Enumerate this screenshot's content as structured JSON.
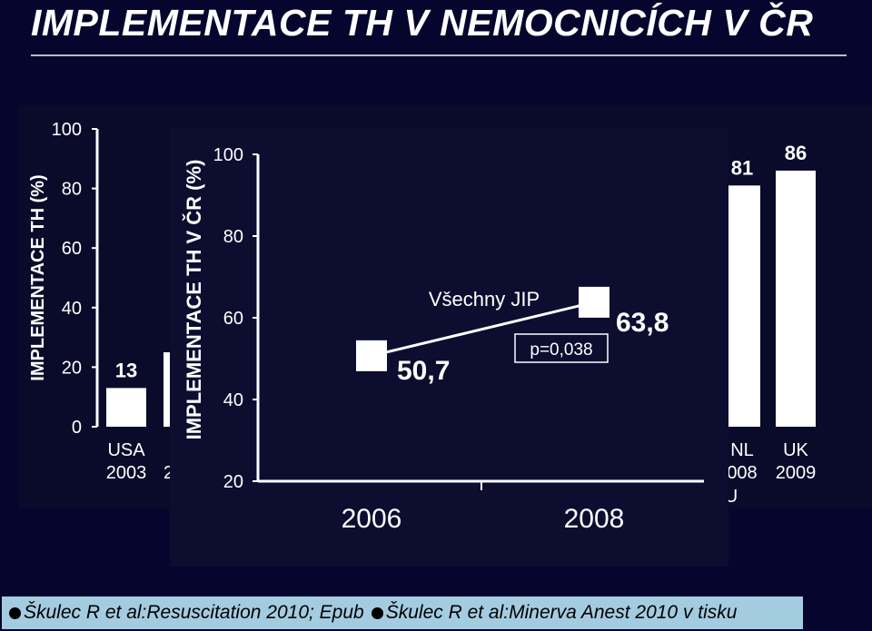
{
  "slide": {
    "title": "IMPLEMENTACE TH V NEMOCNICÍCH V ČR",
    "citations": [
      "Škulec R et al:Resuscitation 2010; Epub",
      "Škulec R et al:Minerva Anest 2010 v tisku"
    ]
  },
  "colors": {
    "background": "#05052e",
    "panel": "#0a0a2a",
    "front_panel": "#0d0d30",
    "bar": "#ffffff",
    "citation_bar": "#a4cce0"
  },
  "chart_data": [
    {
      "type": "bar",
      "ylabel": "IMPLEMENTACE TH (%)",
      "ylim": [
        0,
        100
      ],
      "yticks": [
        "0",
        "20",
        "40",
        "60",
        "80",
        "100"
      ],
      "bars": [
        {
          "label_top": "USA",
          "label_bottom": "2003",
          "value": 13,
          "value_label": "13"
        },
        {
          "label_top": "",
          "label_bottom": "2",
          "value": 25,
          "value_label": ""
        },
        {
          "label_top": "NL",
          "label_bottom": "008",
          "label_extra": "U",
          "value": 81,
          "value_label": "81"
        },
        {
          "label_top": "UK",
          "label_bottom": "2009",
          "value": 86,
          "value_label": "86"
        }
      ]
    },
    {
      "type": "line",
      "ylabel": "IMPLEMENTACE TH V ČR (%)",
      "ylim": [
        20,
        100
      ],
      "yticks": [
        "20",
        "40",
        "60",
        "80",
        "100"
      ],
      "x": [
        "2006",
        "2008"
      ],
      "series": [
        {
          "name": "Všechny JIP",
          "values": [
            50.7,
            63.8
          ],
          "value_labels": [
            "50,7",
            "63,8"
          ]
        }
      ],
      "annotation": "p=0,038"
    }
  ]
}
